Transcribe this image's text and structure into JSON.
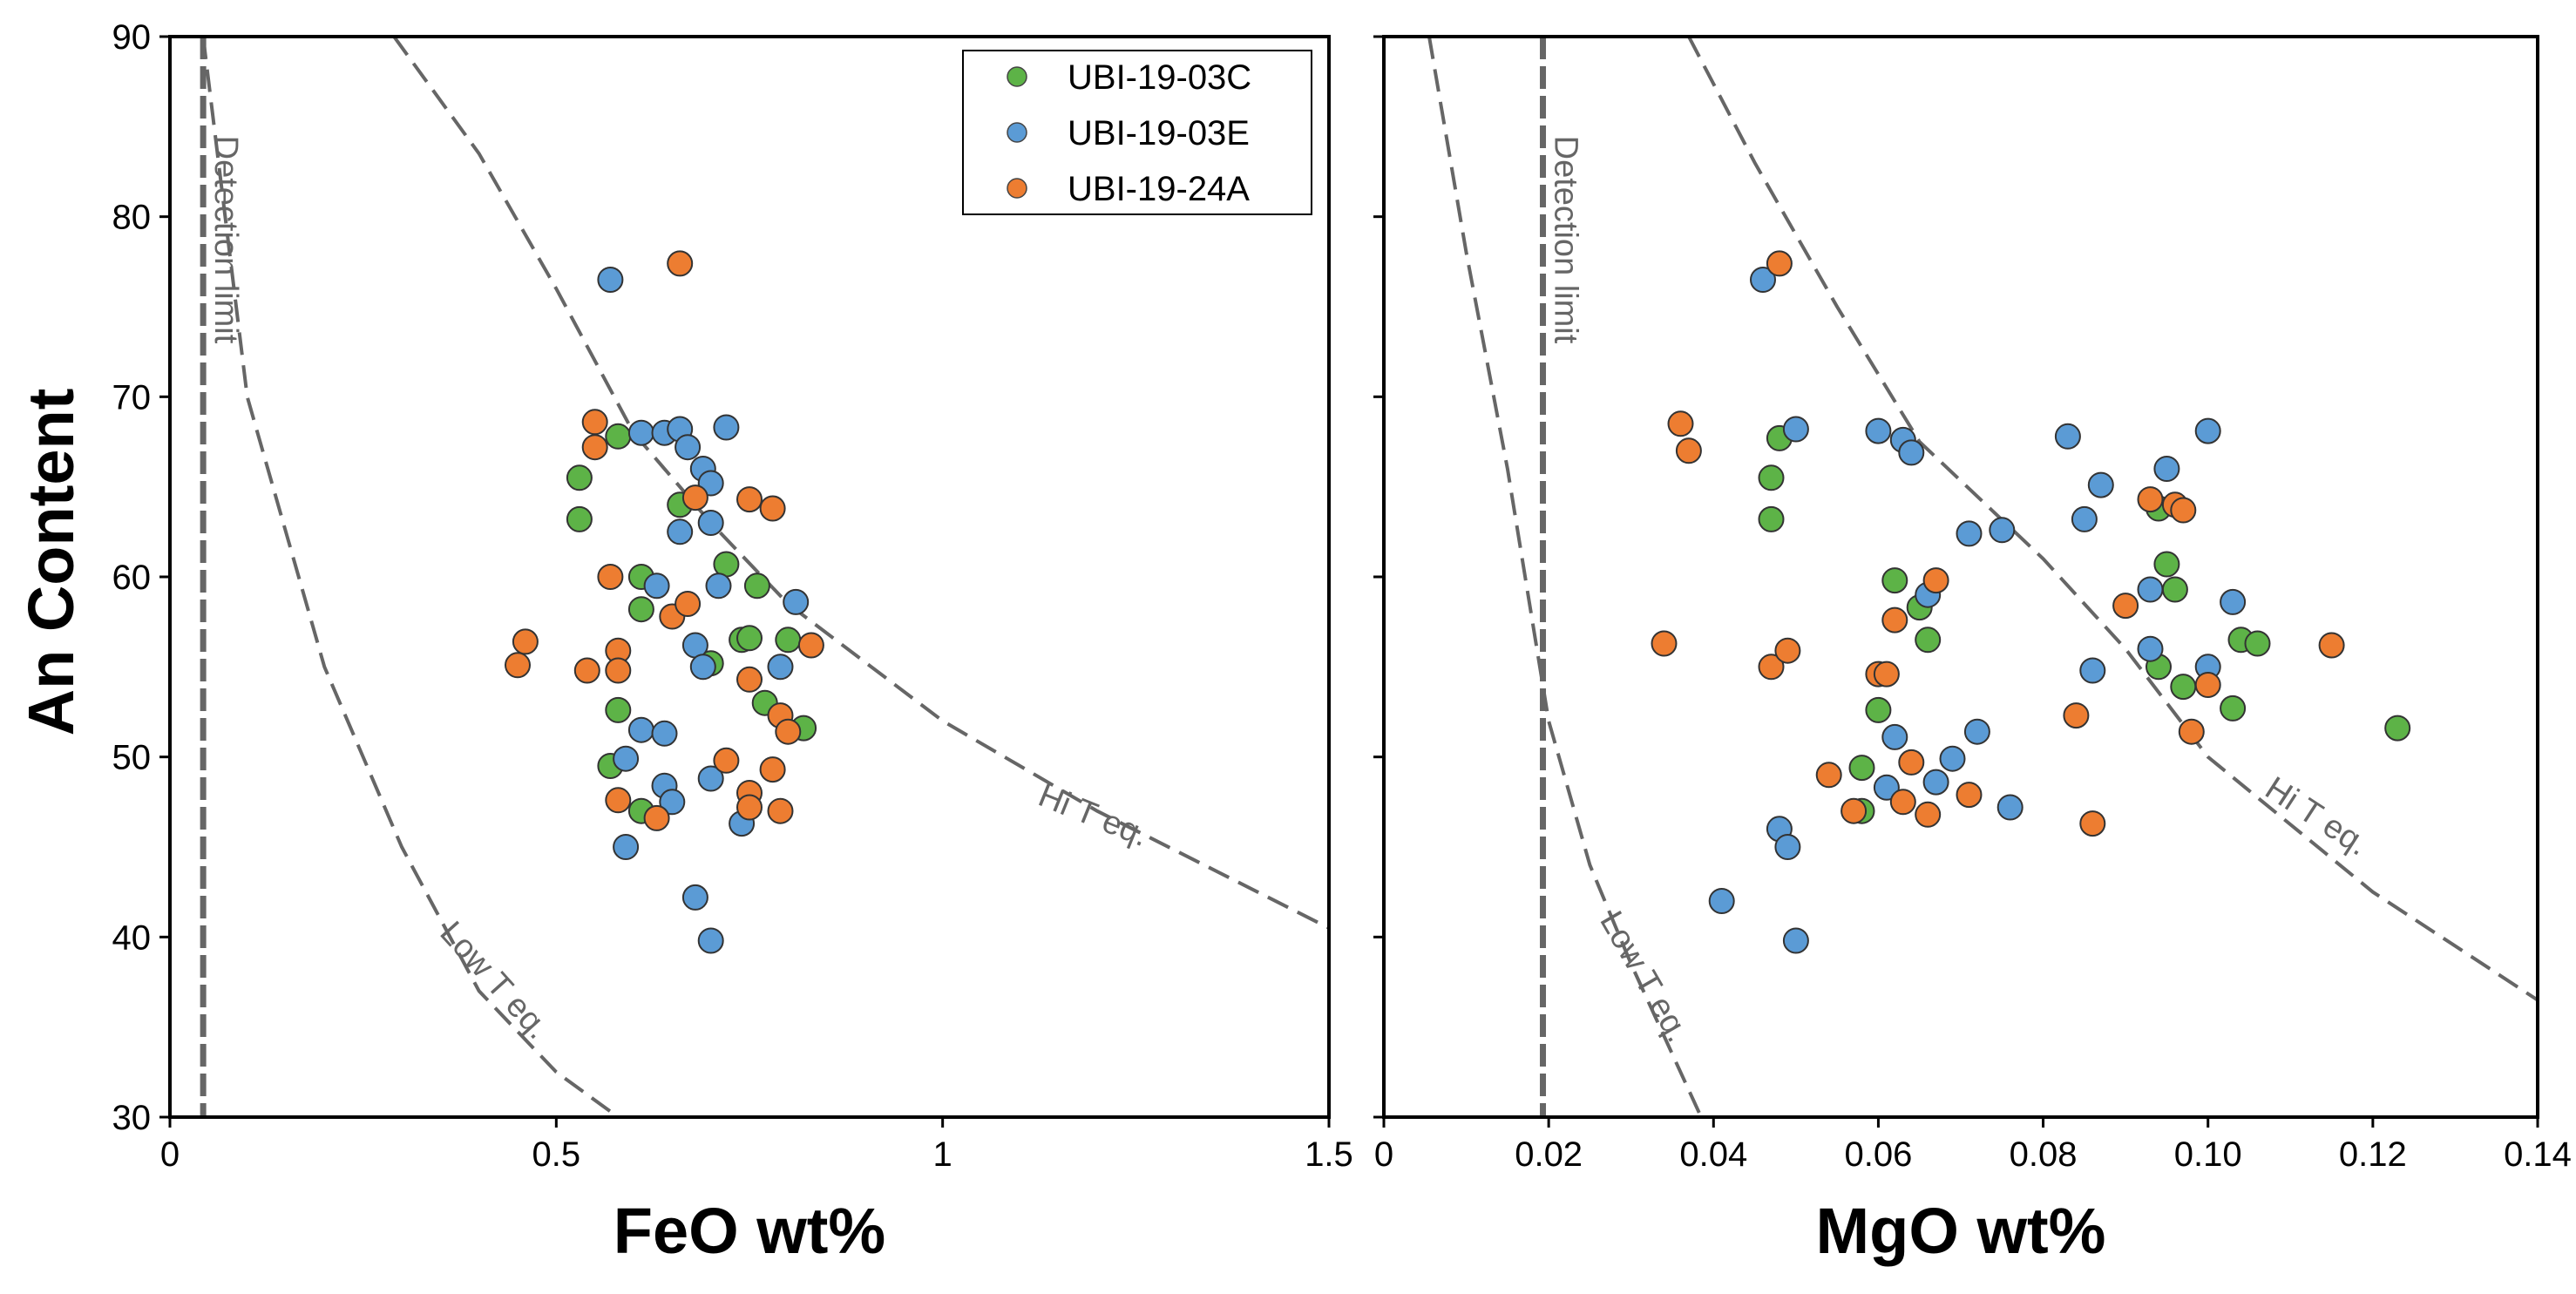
{
  "chart_data": {
    "type": "scatter",
    "ylabel": "An Content",
    "ylim": [
      30,
      90
    ],
    "yticks": [
      30,
      40,
      50,
      60,
      70,
      80,
      90
    ],
    "legend": {
      "placement": "top-right of left panel",
      "entries": [
        {
          "name": "UBI-19-03C",
          "color": "#5db347"
        },
        {
          "name": "UBI-19-03E",
          "color": "#5b9bd5"
        },
        {
          "name": "UBI-19-24A",
          "color": "#ed7d31"
        }
      ]
    },
    "panels": [
      {
        "xlabel": "FeO wt%",
        "xlim": [
          0,
          1.5
        ],
        "xticks": [
          {
            "v": 0,
            "t": "0"
          },
          {
            "v": 0.5,
            "t": "0.5"
          },
          {
            "v": 1,
            "t": "1"
          },
          {
            "v": 1.5,
            "t": "1.5"
          }
        ],
        "detection_limit": {
          "label": "Detection limit",
          "x": 0.043
        },
        "curves": [
          {
            "label": "Low T eq.",
            "points": [
              [
                0.043,
                90
              ],
              [
                0.1,
                70
              ],
              [
                0.2,
                55
              ],
              [
                0.3,
                45
              ],
              [
                0.4,
                37
              ],
              [
                0.5,
                32.5
              ],
              [
                0.58,
                30
              ]
            ]
          },
          {
            "label": "Hi T eq.",
            "points": [
              [
                0.29,
                90
              ],
              [
                0.4,
                83.5
              ],
              [
                0.5,
                76
              ],
              [
                0.6,
                68
              ],
              [
                0.7,
                63
              ],
              [
                0.8,
                58.5
              ],
              [
                1.0,
                52
              ],
              [
                1.2,
                47
              ],
              [
                1.5,
                40.5
              ]
            ]
          }
        ],
        "series": [
          {
            "name": "UBI-19-03C",
            "points": [
              [
                0.53,
                65.5
              ],
              [
                0.53,
                63.2
              ],
              [
                0.58,
                67.8
              ],
              [
                0.61,
                60
              ],
              [
                0.61,
                58.2
              ],
              [
                0.66,
                64
              ],
              [
                0.58,
                52.6
              ],
              [
                0.61,
                47
              ],
              [
                0.57,
                49.5
              ],
              [
                0.72,
                60.7
              ],
              [
                0.76,
                59.5
              ],
              [
                0.74,
                56.5
              ],
              [
                0.75,
                56.6
              ],
              [
                0.8,
                56.5
              ],
              [
                0.7,
                55.2
              ],
              [
                0.77,
                53
              ],
              [
                0.82,
                51.6
              ]
            ]
          },
          {
            "name": "UBI-19-03E",
            "points": [
              [
                0.57,
                76.5
              ],
              [
                0.61,
                68
              ],
              [
                0.64,
                68
              ],
              [
                0.66,
                68.2
              ],
              [
                0.72,
                68.3
              ],
              [
                0.67,
                67.2
              ],
              [
                0.69,
                66
              ],
              [
                0.7,
                65.2
              ],
              [
                0.7,
                63
              ],
              [
                0.66,
                62.5
              ],
              [
                0.63,
                59.5
              ],
              [
                0.71,
                59.5
              ],
              [
                0.81,
                58.6
              ],
              [
                0.68,
                56.2
              ],
              [
                0.69,
                55
              ],
              [
                0.79,
                55
              ],
              [
                0.61,
                51.5
              ],
              [
                0.64,
                51.3
              ],
              [
                0.59,
                49.9
              ],
              [
                0.64,
                48.4
              ],
              [
                0.65,
                47.5
              ],
              [
                0.7,
                48.8
              ],
              [
                0.74,
                46.3
              ],
              [
                0.59,
                45
              ],
              [
                0.68,
                42.2
              ],
              [
                0.7,
                39.8
              ]
            ]
          },
          {
            "name": "UBI-19-24A",
            "points": [
              [
                0.66,
                77.4
              ],
              [
                0.55,
                68.6
              ],
              [
                0.55,
                67.2
              ],
              [
                0.68,
                64.4
              ],
              [
                0.75,
                64.3
              ],
              [
                0.78,
                63.8
              ],
              [
                0.57,
                60
              ],
              [
                0.65,
                57.8
              ],
              [
                0.67,
                58.5
              ],
              [
                0.46,
                56.4
              ],
              [
                0.45,
                55.1
              ],
              [
                0.58,
                55.9
              ],
              [
                0.58,
                54.8
              ],
              [
                0.54,
                54.8
              ],
              [
                0.75,
                54.3
              ],
              [
                0.79,
                52.3
              ],
              [
                0.83,
                56.2
              ],
              [
                0.8,
                51.4
              ],
              [
                0.72,
                49.8
              ],
              [
                0.78,
                49.3
              ],
              [
                0.75,
                48
              ],
              [
                0.75,
                47.2
              ],
              [
                0.79,
                47
              ],
              [
                0.58,
                47.6
              ],
              [
                0.63,
                46.6
              ]
            ]
          }
        ]
      },
      {
        "xlabel": "MgO wt%",
        "xlim": [
          0,
          0.14
        ],
        "xticks": [
          {
            "v": 0,
            "t": "0"
          },
          {
            "v": 0.02,
            "t": "0.02"
          },
          {
            "v": 0.04,
            "t": "0.04"
          },
          {
            "v": 0.06,
            "t": "0.06"
          },
          {
            "v": 0.08,
            "t": "0.08"
          },
          {
            "v": 0.1,
            "t": "0.10"
          },
          {
            "v": 0.12,
            "t": "0.12"
          },
          {
            "v": 0.14,
            "t": "0.14"
          }
        ],
        "detection_limit": {
          "label": "Detection limit",
          "x": 0.0193
        },
        "curves": [
          {
            "label": "Low T eq.",
            "points": [
              [
                0.0055,
                90
              ],
              [
                0.01,
                78
              ],
              [
                0.015,
                66
              ],
              [
                0.02,
                52
              ],
              [
                0.025,
                44
              ],
              [
                0.03,
                38.5
              ],
              [
                0.035,
                33.5
              ],
              [
                0.0385,
                30
              ]
            ]
          },
          {
            "label": "Hi T eq.",
            "points": [
              [
                0.037,
                90
              ],
              [
                0.045,
                83
              ],
              [
                0.055,
                75
              ],
              [
                0.065,
                67.5
              ],
              [
                0.08,
                61
              ],
              [
                0.09,
                56
              ],
              [
                0.1,
                50
              ],
              [
                0.12,
                42.5
              ],
              [
                0.14,
                36.5
              ]
            ]
          }
        ],
        "series": [
          {
            "name": "UBI-19-03C",
            "points": [
              [
                0.048,
                67.7
              ],
              [
                0.047,
                65.5
              ],
              [
                0.047,
                63.2
              ],
              [
                0.062,
                59.8
              ],
              [
                0.065,
                58.3
              ],
              [
                0.066,
                56.5
              ],
              [
                0.06,
                52.6
              ],
              [
                0.058,
                49.4
              ],
              [
                0.058,
                47
              ],
              [
                0.094,
                63.8
              ],
              [
                0.095,
                60.7
              ],
              [
                0.096,
                59.3
              ],
              [
                0.094,
                55
              ],
              [
                0.104,
                56.5
              ],
              [
                0.106,
                56.3
              ],
              [
                0.097,
                53.9
              ],
              [
                0.103,
                52.7
              ],
              [
                0.123,
                51.6
              ]
            ]
          },
          {
            "name": "UBI-19-03E",
            "points": [
              [
                0.046,
                76.5
              ],
              [
                0.05,
                68.2
              ],
              [
                0.06,
                68.1
              ],
              [
                0.063,
                67.6
              ],
              [
                0.064,
                66.9
              ],
              [
                0.083,
                67.8
              ],
              [
                0.1,
                68.1
              ],
              [
                0.095,
                66
              ],
              [
                0.087,
                65.1
              ],
              [
                0.071,
                62.4
              ],
              [
                0.075,
                62.6
              ],
              [
                0.085,
                63.2
              ],
              [
                0.093,
                59.3
              ],
              [
                0.103,
                58.6
              ],
              [
                0.093,
                56
              ],
              [
                0.066,
                59
              ],
              [
                0.086,
                54.8
              ],
              [
                0.1,
                55
              ],
              [
                0.062,
                51.1
              ],
              [
                0.072,
                51.4
              ],
              [
                0.061,
                48.3
              ],
              [
                0.067,
                48.6
              ],
              [
                0.069,
                49.9
              ],
              [
                0.076,
                47.2
              ],
              [
                0.048,
                46
              ],
              [
                0.049,
                45
              ],
              [
                0.041,
                42
              ],
              [
                0.05,
                39.8
              ]
            ]
          },
          {
            "name": "UBI-19-24A",
            "points": [
              [
                0.048,
                77.4
              ],
              [
                0.036,
                68.5
              ],
              [
                0.037,
                67
              ],
              [
                0.034,
                56.3
              ],
              [
                0.047,
                55
              ],
              [
                0.049,
                55.9
              ],
              [
                0.06,
                54.6
              ],
              [
                0.061,
                54.6
              ],
              [
                0.062,
                57.6
              ],
              [
                0.067,
                59.8
              ],
              [
                0.093,
                64.3
              ],
              [
                0.096,
                64
              ],
              [
                0.097,
                63.7
              ],
              [
                0.09,
                58.4
              ],
              [
                0.084,
                52.3
              ],
              [
                0.1,
                54
              ],
              [
                0.098,
                51.4
              ],
              [
                0.115,
                56.2
              ],
              [
                0.054,
                49
              ],
              [
                0.064,
                49.7
              ],
              [
                0.071,
                47.9
              ],
              [
                0.063,
                47.5
              ],
              [
                0.057,
                47
              ],
              [
                0.066,
                46.8
              ],
              [
                0.086,
                46.3
              ]
            ]
          }
        ]
      }
    ]
  }
}
